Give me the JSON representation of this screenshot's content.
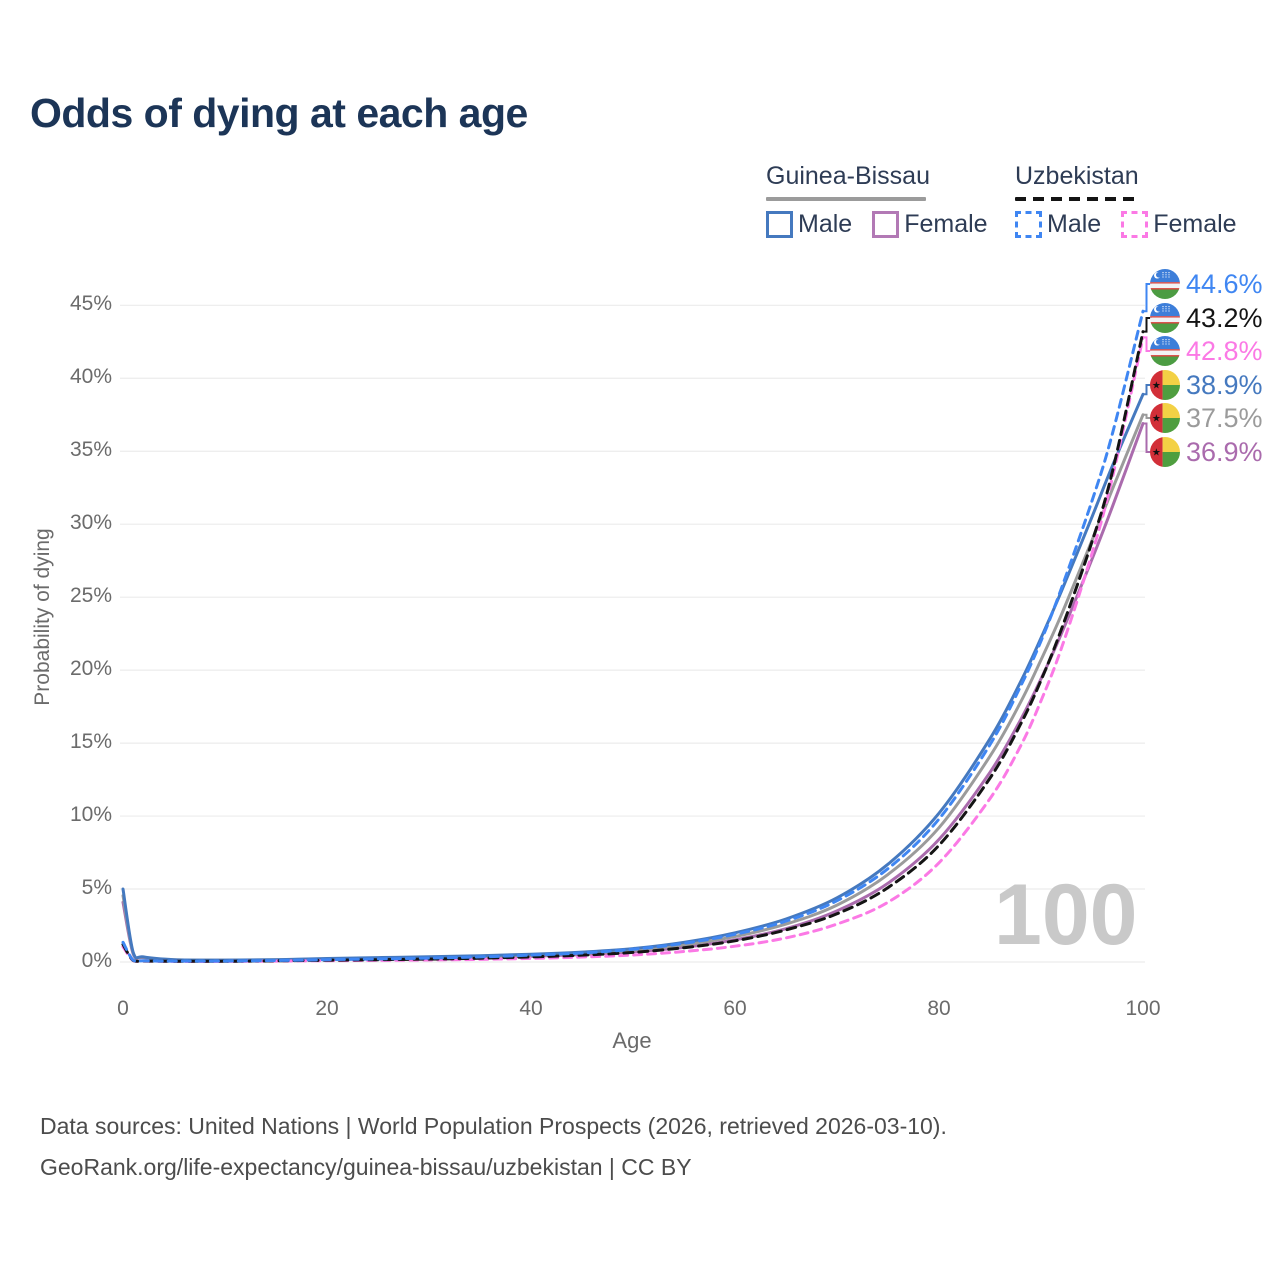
{
  "title": "Odds of dying at each age",
  "legend": {
    "groups": [
      {
        "country": "Guinea-Bissau",
        "line_style": "solid",
        "line_color": "#9b9b9b",
        "items": [
          {
            "label": "Male",
            "color": "#4579bf",
            "style": "solid"
          },
          {
            "label": "Female",
            "color": "#b279b5",
            "style": "solid"
          }
        ]
      },
      {
        "country": "Uzbekistan",
        "line_style": "dashed",
        "line_color": "#141414",
        "items": [
          {
            "label": "Male",
            "color": "#3f86f2",
            "style": "dashed"
          },
          {
            "label": "Female",
            "color": "#fb79e5",
            "style": "dashed"
          }
        ]
      }
    ]
  },
  "footer": {
    "line1": "Data sources: United Nations | World Population Prospects (2026, retrieved 2026-03-10).",
    "line2": "GeoRank.org/life-expectancy/guinea-bissau/uzbekistan | CC BY"
  },
  "chart_data": {
    "type": "line",
    "title": "Odds of dying at each age",
    "xlabel": "Age",
    "ylabel": "Probability of dying",
    "age_cursor": "100",
    "xlim": [
      0,
      100
    ],
    "ylim": [
      0,
      46
    ],
    "grid": true,
    "x_ticks": [
      {
        "value": 0,
        "label": "0"
      },
      {
        "value": 20,
        "label": "20"
      },
      {
        "value": 40,
        "label": "40"
      },
      {
        "value": 60,
        "label": "60"
      },
      {
        "value": 80,
        "label": "80"
      },
      {
        "value": 100,
        "label": "100"
      }
    ],
    "y_ticks": [
      {
        "value": 0,
        "label": "0%"
      },
      {
        "value": 5,
        "label": "5%"
      },
      {
        "value": 10,
        "label": "10%"
      },
      {
        "value": 15,
        "label": "15%"
      },
      {
        "value": 20,
        "label": "20%"
      },
      {
        "value": 25,
        "label": "25%"
      },
      {
        "value": 30,
        "label": "30%"
      },
      {
        "value": 35,
        "label": "35%"
      },
      {
        "value": 40,
        "label": "40%"
      },
      {
        "value": 45,
        "label": "45%"
      }
    ],
    "ages": [
      0,
      1,
      2,
      5,
      10,
      15,
      20,
      25,
      30,
      35,
      40,
      45,
      50,
      55,
      60,
      65,
      70,
      75,
      80,
      85,
      88,
      90,
      92,
      95,
      97,
      100
    ],
    "series": [
      {
        "name": "Uzbekistan Male",
        "country": "Uzbekistan",
        "sex": "Male",
        "style": "dashed",
        "color": "#3f86f2",
        "flag": "uz",
        "end_label": "44.6%",
        "values": [
          1.35,
          0.12,
          0.08,
          0.06,
          0.06,
          0.1,
          0.16,
          0.21,
          0.27,
          0.35,
          0.47,
          0.62,
          0.87,
          1.28,
          1.9,
          2.8,
          4.2,
          6.4,
          9.8,
          14.9,
          18.9,
          22.0,
          25.6,
          31.6,
          36.2,
          44.6
        ]
      },
      {
        "name": "Uzbekistan (both sexes)",
        "country": "Uzbekistan",
        "sex": "Both",
        "style": "dashed",
        "color": "#141414",
        "flag": "uz",
        "end_label": "43.2%",
        "values": [
          1.2,
          0.1,
          0.07,
          0.05,
          0.05,
          0.08,
          0.12,
          0.16,
          0.2,
          0.26,
          0.35,
          0.47,
          0.66,
          0.98,
          1.45,
          2.2,
          3.3,
          5.1,
          8.0,
          12.6,
          16.3,
          19.3,
          22.8,
          28.8,
          33.6,
          43.2
        ]
      },
      {
        "name": "Uzbekistan Female",
        "country": "Uzbekistan",
        "sex": "Female",
        "style": "dashed",
        "color": "#fb79e5",
        "flag": "uz",
        "end_label": "42.8%",
        "values": [
          1.05,
          0.09,
          0.06,
          0.04,
          0.04,
          0.06,
          0.09,
          0.11,
          0.14,
          0.18,
          0.25,
          0.34,
          0.48,
          0.72,
          1.08,
          1.65,
          2.6,
          4.1,
          6.8,
          11.2,
          14.8,
          17.9,
          21.5,
          28.0,
          33.2,
          42.8
        ]
      },
      {
        "name": "Guinea-Bissau Male",
        "country": "Guinea-Bissau",
        "sex": "Male",
        "style": "solid",
        "color": "#4579bf",
        "flag": "gw",
        "end_label": "38.9%",
        "values": [
          5.0,
          0.65,
          0.35,
          0.16,
          0.13,
          0.16,
          0.24,
          0.3,
          0.36,
          0.43,
          0.53,
          0.68,
          0.92,
          1.35,
          2.0,
          2.95,
          4.4,
          6.7,
          10.2,
          15.3,
          19.2,
          22.2,
          25.4,
          30.5,
          34.0,
          38.9
        ]
      },
      {
        "name": "Guinea-Bissau (both sexes)",
        "country": "Guinea-Bissau",
        "sex": "Both",
        "style": "solid",
        "color": "#9b9b9b",
        "flag": "gw",
        "end_label": "37.5%",
        "values": [
          4.55,
          0.6,
          0.32,
          0.15,
          0.12,
          0.15,
          0.21,
          0.26,
          0.31,
          0.37,
          0.46,
          0.59,
          0.81,
          1.17,
          1.75,
          2.6,
          3.9,
          6.0,
          9.2,
          14.1,
          17.8,
          20.7,
          23.8,
          28.9,
          32.4,
          37.5
        ]
      },
      {
        "name": "Guinea-Bissau Female",
        "country": "Guinea-Bissau",
        "sex": "Female",
        "style": "solid",
        "color": "#aa6bad",
        "flag": "gw",
        "end_label": "36.9%",
        "values": [
          4.1,
          0.55,
          0.3,
          0.14,
          0.11,
          0.13,
          0.18,
          0.22,
          0.26,
          0.31,
          0.39,
          0.51,
          0.7,
          1.0,
          1.52,
          2.28,
          3.5,
          5.4,
          8.4,
          13.0,
          16.6,
          19.4,
          22.5,
          27.6,
          31.2,
          36.9
        ]
      }
    ],
    "legend_position": "top-right"
  }
}
